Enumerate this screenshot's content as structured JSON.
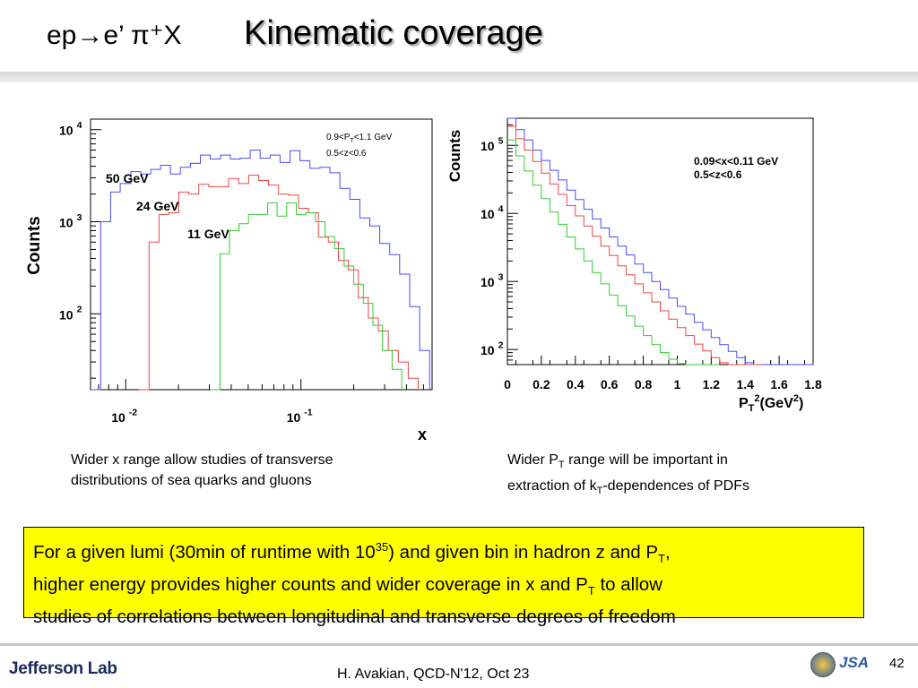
{
  "slide": {
    "title_reaction": "ep→e’ π⁺X",
    "title": "Kinematic coverage"
  },
  "chart_data": [
    {
      "type": "line",
      "ylabel": "Counts",
      "xlabel": "x",
      "annotations": [
        "0.9<PT<1.1 GeV",
        "0.5<z<0.6"
      ],
      "x_scale": "log",
      "y_scale": "log",
      "xlim": [
        0.0063,
        0.56
      ],
      "ylim": [
        15,
        13000
      ],
      "x_tick_labels": [
        {
          "base": "10",
          "exp": "-2"
        },
        {
          "base": "10",
          "exp": "-1"
        }
      ],
      "y_tick_labels": [
        {
          "base": "10",
          "exp": "4"
        },
        {
          "base": "10",
          "exp": "3"
        },
        {
          "base": "10",
          "exp": "2"
        }
      ],
      "series_colors": [
        "#4a4aff",
        "#ee4444",
        "#33cc33"
      ],
      "series": [
        {
          "name": "50 GeV",
          "x": [
            0.0063,
            0.0072,
            0.0082,
            0.0093,
            0.0107,
            0.0122,
            0.0139,
            0.0158,
            0.018,
            0.0205,
            0.0234,
            0.0267,
            0.0304,
            0.0347,
            0.0395,
            0.045,
            0.0513,
            0.0585,
            0.0667,
            0.076,
            0.0866,
            0.0987,
            0.1125,
            0.1283,
            0.1462,
            0.1667,
            0.19,
            0.2166,
            0.2469,
            0.2815,
            0.3209,
            0.3658,
            0.417,
            0.4754,
            0.5419
          ],
          "values": [
            15,
            1000,
            2100,
            2600,
            3500,
            3300,
            3700,
            4100,
            3300,
            3900,
            4300,
            5300,
            4800,
            5300,
            4800,
            4900,
            6000,
            4900,
            5300,
            4400,
            5900,
            4600,
            3800,
            3900,
            3400,
            2300,
            1750,
            1100,
            900,
            580,
            440,
            270,
            120,
            40,
            15
          ]
        },
        {
          "name": "24 GeV",
          "x": [
            0.0119,
            0.0136,
            0.0155,
            0.0176,
            0.0201,
            0.0229,
            0.0261,
            0.0298,
            0.0339,
            0.0387,
            0.0441,
            0.0503,
            0.0573,
            0.0653,
            0.0745,
            0.0849,
            0.0968,
            0.1103,
            0.1258,
            0.1434,
            0.1635,
            0.1864,
            0.2125,
            0.2423,
            0.2762,
            0.3149,
            0.359,
            0.4093,
            0.4666
          ],
          "values": [
            15,
            600,
            1200,
            1250,
            2100,
            2000,
            2550,
            2400,
            2400,
            2950,
            2600,
            3200,
            2800,
            2500,
            2000,
            1950,
            1400,
            1250,
            680,
            600,
            380,
            300,
            150,
            90,
            65,
            40,
            30,
            20,
            15
          ]
        },
        {
          "name": "11 GeV",
          "x": [
            0.0304,
            0.0345,
            0.0391,
            0.0443,
            0.0502,
            0.0569,
            0.0645,
            0.0731,
            0.0829,
            0.094,
            0.1066,
            0.1209,
            0.1371,
            0.1555,
            0.1764,
            0.2001,
            0.2269,
            0.2574,
            0.2919,
            0.3311,
            0.3755
          ],
          "values": [
            15,
            450,
            800,
            950,
            1200,
            1200,
            1600,
            1150,
            1600,
            1200,
            1250,
            1000,
            690,
            510,
            330,
            210,
            130,
            75,
            40,
            25,
            15
          ]
        }
      ],
      "caption": {
        "line1": "Wider x range allow studies of transverse",
        "line2": "distributions of sea quarks and gluons"
      }
    },
    {
      "type": "line",
      "ylabel": "Counts",
      "xlabel": {
        "base": "P",
        "sub": "T",
        "sup": "2",
        "rest": "(GeV",
        "sup2": "2",
        "close": ")"
      },
      "annotations": [
        "0.09<x<0.11 GeV",
        "0.5<z<0.6"
      ],
      "x_scale": "linear",
      "y_scale": "log",
      "xlim": [
        0,
        1.8
      ],
      "ylim": [
        60,
        250000
      ],
      "x_tick_labels": [
        "0",
        "0.2",
        "0.4",
        "0.6",
        "0.8",
        "1",
        "1.2",
        "1.4",
        "1.6",
        "1.8"
      ],
      "y_tick_labels": [
        {
          "base": "10",
          "exp": "5"
        },
        {
          "base": "10",
          "exp": "4"
        },
        {
          "base": "10",
          "exp": "3"
        },
        {
          "base": "10",
          "exp": "2"
        }
      ],
      "series_colors": [
        "#4a4aff",
        "#ee4444",
        "#33cc33"
      ],
      "series": [
        {
          "name": "blue",
          "x": [
            0,
            0.05,
            0.1,
            0.15,
            0.2,
            0.25,
            0.3,
            0.35,
            0.4,
            0.45,
            0.5,
            0.55,
            0.6,
            0.65,
            0.7,
            0.75,
            0.8,
            0.85,
            0.9,
            0.95,
            1.0,
            1.05,
            1.1,
            1.15,
            1.2,
            1.25,
            1.3,
            1.35,
            1.4,
            1.45,
            1.5,
            1.55,
            1.6,
            1.65,
            1.7,
            1.75
          ],
          "values": [
            250000,
            170000,
            120000,
            85000,
            60000,
            43000,
            31000,
            22000,
            16000,
            11500,
            8300,
            6100,
            4500,
            3300,
            2450,
            1800,
            1350,
            1000,
            760,
            570,
            430,
            330,
            250,
            195,
            150,
            118,
            94,
            76,
            64,
            60,
            60,
            60,
            60,
            60,
            60,
            60
          ]
        },
        {
          "name": "red",
          "x": [
            0,
            0.05,
            0.1,
            0.15,
            0.2,
            0.25,
            0.3,
            0.35,
            0.4,
            0.45,
            0.5,
            0.55,
            0.6,
            0.65,
            0.7,
            0.75,
            0.8,
            0.85,
            0.9,
            0.95,
            1.0,
            1.05,
            1.1,
            1.15,
            1.2,
            1.25,
            1.3,
            1.35,
            1.4,
            1.45
          ],
          "values": [
            190000,
            125000,
            85000,
            58000,
            39000,
            27000,
            19000,
            13000,
            9200,
            6500,
            4600,
            3300,
            2400,
            1700,
            1250,
            920,
            680,
            500,
            370,
            280,
            210,
            160,
            120,
            95,
            76,
            64,
            60,
            60,
            60,
            60
          ]
        },
        {
          "name": "green",
          "x": [
            0,
            0.05,
            0.1,
            0.15,
            0.2,
            0.25,
            0.3,
            0.35,
            0.4,
            0.45,
            0.5,
            0.55,
            0.6,
            0.65,
            0.7,
            0.75,
            0.8,
            0.85,
            0.9,
            0.95,
            1.0,
            1.05,
            1.1,
            1.15,
            1.2
          ],
          "values": [
            120000,
            70000,
            42000,
            26000,
            16500,
            10500,
            6900,
            4500,
            3000,
            2000,
            1350,
            920,
            630,
            440,
            310,
            220,
            160,
            118,
            90,
            72,
            62,
            60,
            60,
            60,
            60
          ]
        }
      ],
      "caption": {
        "line1_a": "Wider P",
        "line1_sub": "T",
        "line1_b": " range will be important in",
        "line2_a": "extraction of k",
        "line2_sub": "T",
        "line2_b": "-dependences of PDFs"
      }
    }
  ],
  "summary": {
    "p1": "For a given lumi (30min of runtime with 10",
    "sup": "35",
    "p2": ") and given bin in hadron z and P",
    "sub1": "T",
    "p3": ",",
    "p4": "higher energy provides higher counts and wider coverage in x and P",
    "sub2": "T",
    "p5": " to allow",
    "p6": "studies of correlations between longitudinal and transverse degrees of freedom"
  },
  "footer": {
    "logo_text": "Jefferson Lab",
    "jsa_text": "JSA",
    "text": "H. Avakian, QCD-N'12,  Oct 23",
    "page": "42"
  },
  "colors": {
    "summary_bg": "#ffff00",
    "blue": "#4a4aff",
    "red": "#ee4444",
    "green": "#33cc33"
  }
}
